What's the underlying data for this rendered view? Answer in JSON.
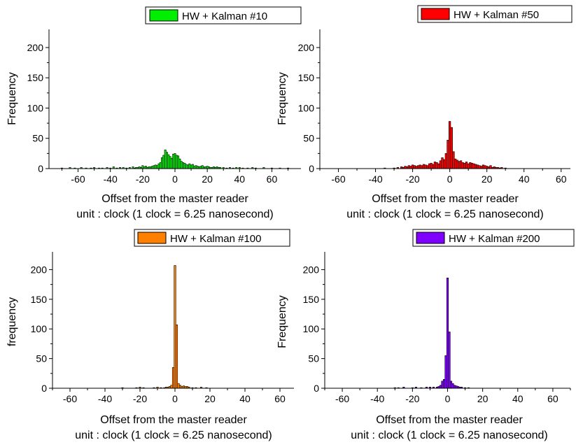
{
  "chart_data": [
    {
      "type": "bar",
      "legend": "HW + Kalman #10",
      "legend_color": "#00ee00",
      "ylabel": "Frequency",
      "xlabel": "Offset from the master reader",
      "xlabel2": "unit : clock (1 clock = 6.25 nanosecond)",
      "xlim": [
        -78,
        78
      ],
      "ylim": [
        0,
        230
      ],
      "xticks": [
        -60,
        -40,
        -20,
        0,
        20,
        40,
        60
      ],
      "xtick_labels": [
        "-60",
        "-40",
        "-20",
        "0",
        "20",
        "40",
        "60"
      ],
      "yticks": [
        0,
        50,
        100,
        150,
        200
      ],
      "ytick_labels": [
        "0",
        "50",
        "100",
        "150",
        "200"
      ],
      "bin_width": 1,
      "x": [
        -70,
        -65,
        -62,
        -58,
        -55,
        -52,
        -50,
        -47,
        -45,
        -42,
        -40,
        -38,
        -36,
        -34,
        -32,
        -30,
        -28,
        -26,
        -25,
        -24,
        -23,
        -22,
        -21,
        -20,
        -19,
        -18,
        -17,
        -16,
        -15,
        -14,
        -13,
        -12,
        -11,
        -10,
        -9,
        -8,
        -7,
        -6,
        -5,
        -4,
        -3,
        -2,
        -1,
        0,
        1,
        2,
        3,
        4,
        5,
        6,
        7,
        8,
        9,
        10,
        11,
        12,
        13,
        14,
        15,
        16,
        17,
        18,
        19,
        20,
        21,
        22,
        23,
        24,
        25,
        26,
        27,
        28,
        30,
        32,
        34,
        36,
        38,
        40,
        42,
        45,
        48,
        50,
        55,
        60,
        65,
        70
      ],
      "y": [
        1,
        2,
        1,
        2,
        1,
        1,
        2,
        1,
        1,
        2,
        1,
        3,
        1,
        2,
        2,
        1,
        2,
        3,
        1,
        2,
        2,
        3,
        2,
        5,
        3,
        4,
        2,
        3,
        3,
        4,
        5,
        6,
        5,
        8,
        10,
        18,
        22,
        31,
        27,
        23,
        20,
        17,
        24,
        25,
        22,
        21,
        16,
        12,
        10,
        9,
        7,
        6,
        8,
        6,
        7,
        4,
        5,
        4,
        3,
        4,
        5,
        3,
        3,
        4,
        3,
        2,
        2,
        3,
        2,
        3,
        2,
        2,
        2,
        1,
        2,
        1,
        2,
        2,
        1,
        1,
        2,
        1,
        2,
        1,
        1,
        1
      ]
    },
    {
      "type": "bar",
      "legend": "HW + Kalman #50",
      "legend_color": "#ff0000",
      "ylabel": "Frequency",
      "xlabel": "Offset from the master reader",
      "xlabel2": "unit : clock (1 clock = 6.25 nanosecond)",
      "xlim": [
        -70,
        65
      ],
      "ylim": [
        0,
        230
      ],
      "xticks": [
        -60,
        -40,
        -20,
        0,
        20,
        40,
        60
      ],
      "xtick_labels": [
        "-60",
        "-40",
        "-20",
        "0",
        "20",
        "40",
        "60"
      ],
      "yticks": [
        0,
        50,
        100,
        150,
        200
      ],
      "ytick_labels": [
        "0",
        "50",
        "100",
        "150",
        "200"
      ],
      "bin_width": 1,
      "x": [
        -35,
        -30,
        -28,
        -26,
        -25,
        -24,
        -23,
        -22,
        -21,
        -20,
        -19,
        -18,
        -17,
        -16,
        -15,
        -14,
        -13,
        -12,
        -11,
        -10,
        -9,
        -8,
        -7,
        -6,
        -5,
        -4,
        -3,
        -2,
        -1,
        0,
        1,
        2,
        3,
        4,
        5,
        6,
        7,
        8,
        9,
        10,
        11,
        12,
        13,
        14,
        15,
        16,
        17,
        18,
        19,
        20,
        21,
        22,
        23,
        24,
        25,
        26,
        27,
        28,
        30
      ],
      "y": [
        1,
        1,
        2,
        3,
        2,
        4,
        3,
        5,
        4,
        6,
        5,
        4,
        5,
        6,
        5,
        7,
        6,
        5,
        8,
        9,
        7,
        11,
        10,
        8,
        13,
        18,
        15,
        25,
        47,
        78,
        68,
        28,
        16,
        14,
        12,
        13,
        10,
        9,
        11,
        8,
        10,
        9,
        8,
        7,
        6,
        5,
        4,
        6,
        5,
        4,
        3,
        5,
        2,
        3,
        2,
        2,
        1,
        2,
        1
      ]
    },
    {
      "type": "bar",
      "legend": "HW + Kalman #100",
      "legend_color": "#ff8000",
      "ylabel": "frequency",
      "xlabel": "Offset from the master reader",
      "xlabel2": "unit : clock (1 clock = 6.25 nanosecond)",
      "xlim": [
        -70,
        70
      ],
      "ylim": [
        0,
        230
      ],
      "xticks": [
        -60,
        -40,
        -20,
        0,
        20,
        40,
        60
      ],
      "xtick_labels": [
        "-60",
        "-40",
        "-20",
        "0",
        "20",
        "40",
        "60"
      ],
      "yticks": [
        0,
        50,
        100,
        150,
        200
      ],
      "ytick_labels": [
        "0",
        "50",
        "100",
        "150",
        "200"
      ],
      "bin_width": 1,
      "x": [
        -30,
        -22,
        -20,
        -18,
        -12,
        -10,
        -8,
        -6,
        -5,
        -4,
        -3,
        -2,
        -1,
        0,
        1,
        2,
        3,
        4,
        5,
        6,
        7,
        8,
        10,
        12,
        15,
        18
      ],
      "y": [
        1,
        1,
        2,
        1,
        1,
        2,
        1,
        1,
        2,
        2,
        3,
        5,
        35,
        207,
        107,
        8,
        5,
        3,
        4,
        3,
        3,
        2,
        1,
        1,
        2,
        1
      ]
    },
    {
      "type": "bar",
      "legend": "HW + Kalman #200",
      "legend_color": "#8000ff",
      "ylabel": "Frequency",
      "xlabel": "Offset from the master reader",
      "xlabel2": "unit : clock (1 clock = 6.25 nanosecond)",
      "xlim": [
        -70,
        70
      ],
      "ylim": [
        0,
        230
      ],
      "xticks": [
        -60,
        -40,
        -20,
        0,
        20,
        40,
        60
      ],
      "xtick_labels": [
        "-60",
        "-40",
        "-20",
        "0",
        "20",
        "40",
        "60"
      ],
      "yticks": [
        0,
        50,
        100,
        150,
        200
      ],
      "ytick_labels": [
        "0",
        "50",
        "100",
        "150",
        "200"
      ],
      "bin_width": 1,
      "x": [
        -30,
        -28,
        -25,
        -20,
        -18,
        -15,
        -12,
        -10,
        -8,
        -6,
        -5,
        -4,
        -3,
        -2,
        -1,
        0,
        1,
        2,
        3,
        4,
        5,
        6,
        7,
        8,
        10,
        12
      ],
      "y": [
        1,
        1,
        2,
        1,
        2,
        1,
        2,
        2,
        2,
        2,
        3,
        5,
        12,
        15,
        55,
        186,
        95,
        12,
        8,
        5,
        4,
        3,
        2,
        2,
        1,
        1
      ]
    }
  ]
}
